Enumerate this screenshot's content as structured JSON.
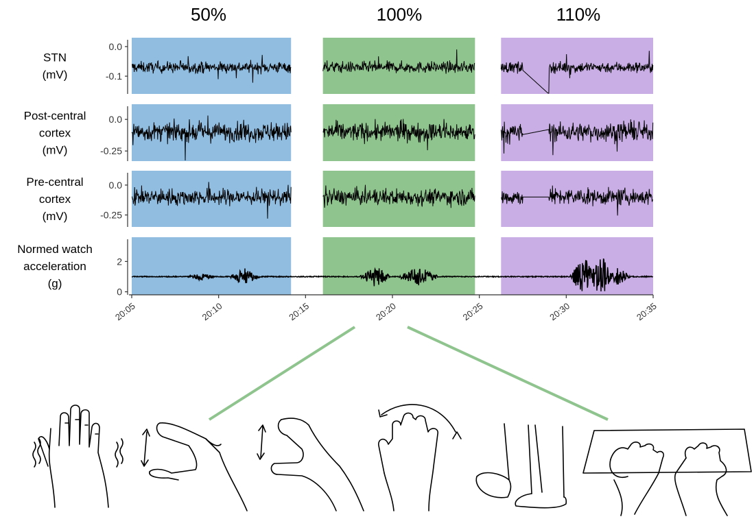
{
  "conditions": [
    {
      "label": "50%",
      "color": "#90bde0"
    },
    {
      "label": "100%",
      "color": "#8fc48e"
    },
    {
      "label": "110%",
      "color": "#c8aee4"
    }
  ],
  "chart_data": {
    "type": "line",
    "shared_x": {
      "range": [
        "20:05",
        "20:35"
      ],
      "tick_labels": [
        "20:05",
        "20:10",
        "20:15",
        "20:20",
        "20:25",
        "20:30",
        "20:35"
      ]
    },
    "condition_spans": [
      {
        "label": "50%",
        "start": "20:05:00",
        "end": "20:14:10"
      },
      {
        "label": "100%",
        "start": "20:16:00",
        "end": "20:24:45"
      },
      {
        "label": "110%",
        "start": "20:26:15",
        "end": "20:35:00"
      }
    ],
    "panels": [
      {
        "ylabel_lines": [
          "STN",
          "(mV)"
        ],
        "yticks": [
          "0.0",
          "-0.1"
        ],
        "ylim": [
          -0.16,
          0.03
        ],
        "baseline": -0.07,
        "amplitude": 0.018,
        "traces": [
          {
            "condition": "50%",
            "start": "20:05:00",
            "end": "20:14:10"
          },
          {
            "condition": "100%",
            "start": "20:16:00",
            "end": "20:24:45"
          },
          {
            "condition": "110%",
            "start": "20:26:15",
            "end": "20:35:00",
            "artifact": {
              "start": "20:27:30",
              "end": "20:29:00",
              "from": -0.08,
              "to": -0.16
            }
          }
        ]
      },
      {
        "ylabel_lines": [
          "Post-central",
          "cortex",
          "(mV)"
        ],
        "yticks": [
          "0.0",
          "-0.25"
        ],
        "ylim": [
          -0.33,
          0.12
        ],
        "baseline": -0.1,
        "amplitude": 0.07,
        "traces": [
          {
            "condition": "50%",
            "start": "20:05:00",
            "end": "20:14:10"
          },
          {
            "condition": "100%",
            "start": "20:16:00",
            "end": "20:24:45"
          },
          {
            "condition": "110%",
            "start": "20:26:15",
            "end": "20:35:00",
            "artifact": {
              "start": "20:27:30",
              "end": "20:29:00",
              "from": -0.12,
              "to": -0.08
            }
          }
        ]
      },
      {
        "ylabel_lines": [
          "Pre-central",
          "cortex",
          "(mV)"
        ],
        "yticks": [
          "0.0",
          "-0.25"
        ],
        "ylim": [
          -0.35,
          0.12
        ],
        "baseline": -0.1,
        "amplitude": 0.065,
        "traces": [
          {
            "condition": "50%",
            "start": "20:05:00",
            "end": "20:14:10"
          },
          {
            "condition": "100%",
            "start": "20:16:00",
            "end": "20:24:45"
          },
          {
            "condition": "110%",
            "start": "20:26:15",
            "end": "20:35:00",
            "artifact": {
              "start": "20:27:30",
              "end": "20:29:00",
              "from": -0.1,
              "to": -0.1
            }
          }
        ]
      },
      {
        "ylabel_lines": [
          "Normed watch",
          "acceleration",
          "(g)"
        ],
        "yticks": [
          "2",
          "0"
        ],
        "ylim": [
          -0.2,
          3.6
        ],
        "baseline": 1.0,
        "amplitude": 0.03,
        "traces": [
          {
            "condition": "all",
            "start": "20:05:00",
            "end": "20:35:00",
            "bursts": [
              {
                "center": "20:09:00",
                "width_min": 0.8,
                "amp": 0.4
              },
              {
                "center": "20:11:30",
                "width_min": 0.9,
                "amp": 0.9
              },
              {
                "center": "20:19:00",
                "width_min": 0.9,
                "amp": 1.2
              },
              {
                "center": "20:21:30",
                "width_min": 1.2,
                "amp": 1.1
              },
              {
                "center": "20:31:00",
                "width_min": 0.8,
                "amp": 2.2
              },
              {
                "center": "20:32:00",
                "width_min": 0.8,
                "amp": 2.4
              },
              {
                "center": "20:33:00",
                "width_min": 0.7,
                "amp": 1.0
              }
            ]
          }
        ]
      }
    ]
  },
  "tasks": [
    {
      "icon": "hand-tremor-icon"
    },
    {
      "icon": "finger-tapping-icon"
    },
    {
      "icon": "finger-pinch-icon"
    },
    {
      "icon": "hand-pronation-supination-icon"
    },
    {
      "icon": "foot-tapping-icon"
    },
    {
      "icon": "typing-keyboard-icon"
    }
  ]
}
